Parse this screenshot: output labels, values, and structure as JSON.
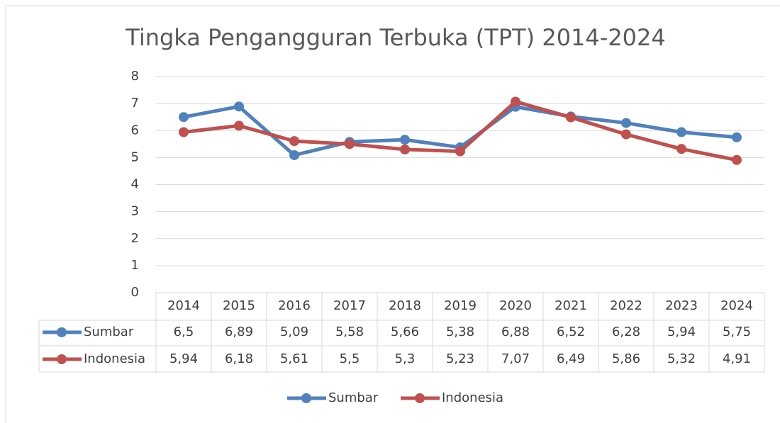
{
  "chart_data": {
    "type": "line",
    "title": "Tingka Pengangguran Terbuka (TPT) 2014-2024",
    "categories": [
      "2014",
      "2015",
      "2016",
      "2017",
      "2018",
      "2019",
      "2020",
      "2021",
      "2022",
      "2023",
      "2024"
    ],
    "series": [
      {
        "name": "Sumbar",
        "color": "#4f81bd",
        "values": [
          6.5,
          6.89,
          5.09,
          5.58,
          5.66,
          5.38,
          6.88,
          6.52,
          6.28,
          5.94,
          5.75
        ],
        "value_labels": [
          "6,5",
          "6,89",
          "5,09",
          "5,58",
          "5,66",
          "5,38",
          "6,88",
          "6,52",
          "6,28",
          "5,94",
          "5,75"
        ]
      },
      {
        "name": "Indonesia",
        "color": "#c0504d",
        "values": [
          5.94,
          6.18,
          5.61,
          5.5,
          5.3,
          5.23,
          7.07,
          6.49,
          5.86,
          5.32,
          4.91
        ],
        "value_labels": [
          "5,94",
          "6,18",
          "5,61",
          "5,5",
          "5,3",
          "5,23",
          "7,07",
          "6,49",
          "5,86",
          "5,32",
          "4,91"
        ]
      }
    ],
    "ylim": [
      0,
      8
    ],
    "yticks": [
      0,
      1,
      2,
      3,
      4,
      5,
      6,
      7,
      8
    ],
    "grid": true,
    "data_table": true,
    "legend": "bottom"
  }
}
